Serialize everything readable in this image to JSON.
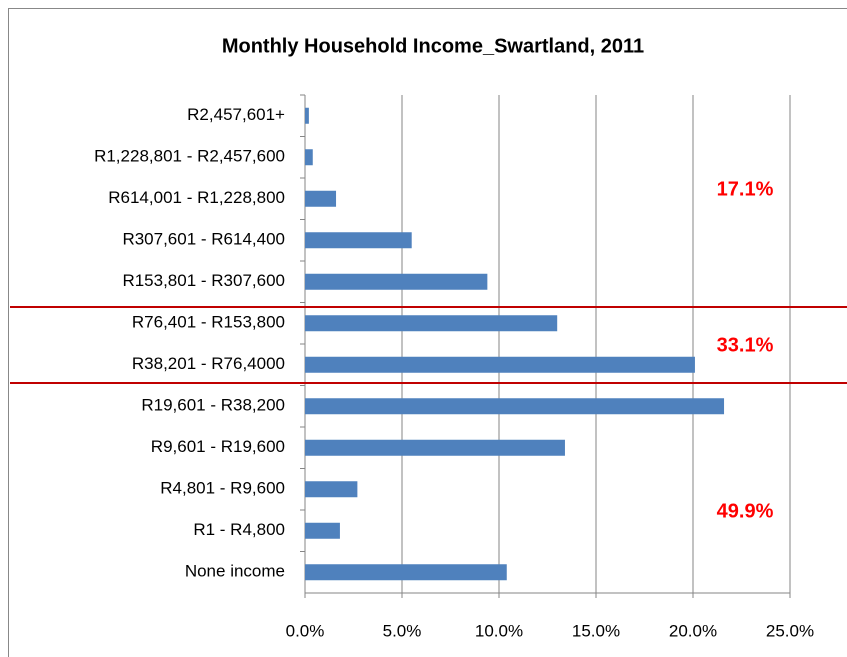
{
  "chart_data": {
    "type": "bar",
    "orientation": "horizontal",
    "title": "Monthly Household Income_Swartland, 2011",
    "categories": [
      "R2,457,601+",
      "R1,228,801 - R2,457,600",
      "R614,001 - R1,228,800",
      "R307,601 - R614,400",
      "R153,801 - R307,600",
      "R76,401 - R153,800",
      "R38,201 - R76,4000",
      "R19,601 - R38,200",
      "R9,601 - R19,600",
      "R4,801 - R9,600",
      "R1 - R4,800",
      "None income"
    ],
    "values": [
      0.2,
      0.4,
      1.6,
      5.5,
      9.4,
      13.0,
      20.1,
      21.6,
      13.4,
      2.7,
      1.8,
      10.4
    ],
    "color": "#4f81bd",
    "xlim": [
      0,
      25
    ],
    "xticks": [
      {
        "value": 0,
        "label": "0.0%"
      },
      {
        "value": 5,
        "label": "5.0%"
      },
      {
        "value": 10,
        "label": "10.0%"
      },
      {
        "value": 15,
        "label": "15.0%"
      },
      {
        "value": 20,
        "label": "20.0%"
      },
      {
        "value": 25,
        "label": "25.0%"
      }
    ],
    "grid": true,
    "annotations": [
      "17.1%",
      "33.1%",
      "49.9%"
    ]
  }
}
